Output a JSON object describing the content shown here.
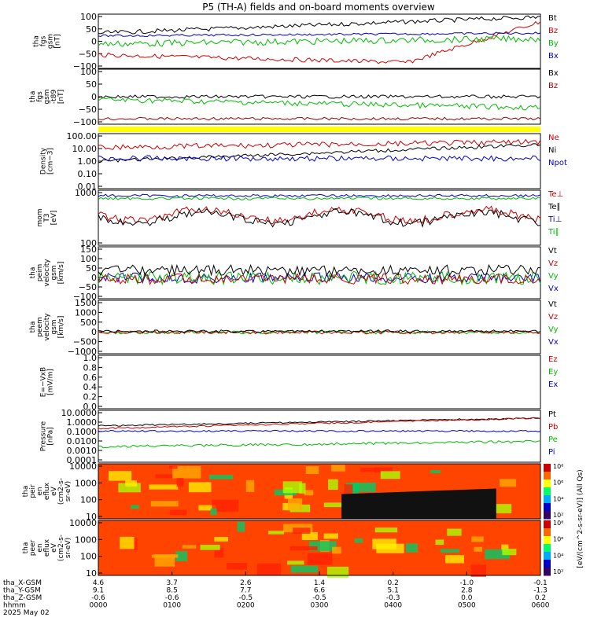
{
  "chart_data": {
    "title": "P5 (TH-A) fields and on-board moments overview",
    "type": "line",
    "x_axis": {
      "labels_left": [
        "tha_X-GSM",
        "tha_Y-GSM",
        "tha_Z-GSM",
        "hhmm",
        "2025 May 02"
      ],
      "columns": [
        {
          "x": "4.6",
          "y": "9.1",
          "z": "-0.6",
          "t": "0000"
        },
        {
          "x": "3.7",
          "y": "8.5",
          "z": "-0.6",
          "t": "0100"
        },
        {
          "x": "2.6",
          "y": "7.7",
          "z": "-0.5",
          "t": "0200"
        },
        {
          "x": "1.4",
          "y": "6.6",
          "z": "-0.5",
          "t": "0300"
        },
        {
          "x": "0.2",
          "y": "5.1",
          "z": "-0.3",
          "t": "0400"
        },
        {
          "x": "-1.0",
          "y": "2.8",
          "z": "0.0",
          "t": "0500"
        },
        {
          "x": "-0.1",
          "y": "-1.3",
          "z": "0.2",
          "t": "0600"
        }
      ]
    },
    "panels": [
      {
        "ylabel": [
          "tha",
          "fgs",
          "gsm",
          "[nT]"
        ],
        "ticks": [
          "100",
          "50",
          "0",
          "−50",
          "−100"
        ],
        "legend": [
          {
            "name": "Bt",
            "color": "#000000"
          },
          {
            "name": "Bz",
            "color": "#cc0000"
          },
          {
            "name": "By",
            "color": "#00bb00"
          },
          {
            "name": "Bx",
            "color": "#0000cc"
          }
        ]
      },
      {
        "ylabel": [
          "tha",
          "fgs",
          "gsm",
          "-t89",
          "[nT]"
        ],
        "ticks": [
          "100",
          "50",
          "0",
          "−50",
          "−100"
        ],
        "legend": [
          {
            "name": "Bx",
            "color": "#000000"
          },
          {
            "name": "Bz",
            "color": "#990000"
          }
        ]
      },
      {
        "ylabel": [
          "Density",
          "[cm−3]"
        ],
        "ticks": [
          "100.00",
          "10.00",
          "1.00",
          "0.10",
          "0.01"
        ],
        "legend": [
          {
            "name": "Ne",
            "color": "#cc0000"
          },
          {
            "name": "Ni",
            "color": "#000000"
          },
          {
            "name": "Npot",
            "color": "#0000cc"
          }
        ]
      },
      {
        "ylabel": [
          "mom",
          "T3",
          "[eV]"
        ],
        "ticks": [
          "1000",
          "100"
        ],
        "legend": [
          {
            "name": "Te⊥",
            "color": "#cc0000"
          },
          {
            "name": "Te∥",
            "color": "#000000"
          },
          {
            "name": "Ti⊥",
            "color": "#0000cc"
          },
          {
            "name": "Ti∥",
            "color": "#00bb00"
          }
        ]
      },
      {
        "ylabel": [
          "tha",
          "peim",
          "velocity",
          "gsm",
          "[km/s]"
        ],
        "ticks": [
          "150",
          "100",
          "50",
          "0",
          "−50",
          "−100"
        ],
        "legend": [
          {
            "name": "Vt",
            "color": "#000000"
          },
          {
            "name": "Vz",
            "color": "#cc0000"
          },
          {
            "name": "Vy",
            "color": "#00bb00"
          },
          {
            "name": "Vx",
            "color": "#0000cc"
          }
        ]
      },
      {
        "ylabel": [
          "tha",
          "peem",
          "velocity",
          "gsm",
          "[km/s]"
        ],
        "ticks": [
          "1500",
          "1000",
          "500",
          "0",
          "−500",
          "−1000"
        ],
        "legend": [
          {
            "name": "Vt",
            "color": "#000000"
          },
          {
            "name": "Vz",
            "color": "#cc0000"
          },
          {
            "name": "Vy",
            "color": "#00bb00"
          },
          {
            "name": "Vx",
            "color": "#0000cc"
          }
        ]
      },
      {
        "ylabel": [
          "E=−VxB",
          "[mV/m]"
        ],
        "ticks": [
          "1.0",
          "0.8",
          "0.6",
          "0.4",
          "0.2",
          "0.0"
        ],
        "legend": [
          {
            "name": "Ez",
            "color": "#cc0000"
          },
          {
            "name": "Ey",
            "color": "#00bb00"
          },
          {
            "name": "Ex",
            "color": "#0000cc"
          }
        ]
      },
      {
        "ylabel": [
          "Pressure",
          "[nPa]"
        ],
        "ticks": [
          "10.0000",
          "1.0000",
          "0.1000",
          "0.0100",
          "0.0010",
          "0.0001"
        ],
        "legend": [
          {
            "name": "Pt",
            "color": "#000000"
          },
          {
            "name": "Pb",
            "color": "#cc0000"
          },
          {
            "name": "Pe",
            "color": "#00bb00"
          },
          {
            "name": "Pi",
            "color": "#0000cc"
          }
        ]
      },
      {
        "ylabel": [
          "tha",
          "peir",
          "en",
          "eflux",
          "eV",
          "(cm2-s-",
          "sr-eV)"
        ],
        "ticks": [
          "10000",
          "1000",
          "100",
          "10"
        ],
        "colorbar": [
          "10⁸",
          "10⁶",
          "10⁴",
          "10²"
        ]
      },
      {
        "ylabel": [
          "tha",
          "peer",
          "en",
          "eflux",
          "eV",
          "(cm2-s-",
          "sr-eV)"
        ],
        "ticks": [
          "10000",
          "1000",
          "100",
          "10"
        ],
        "colorbar": [
          "10⁸",
          "10⁶",
          "10⁴",
          "10²"
        ]
      }
    ],
    "colorbar_label": "[eV/(cm^2-s-sr-eV)] (All Qs)"
  }
}
